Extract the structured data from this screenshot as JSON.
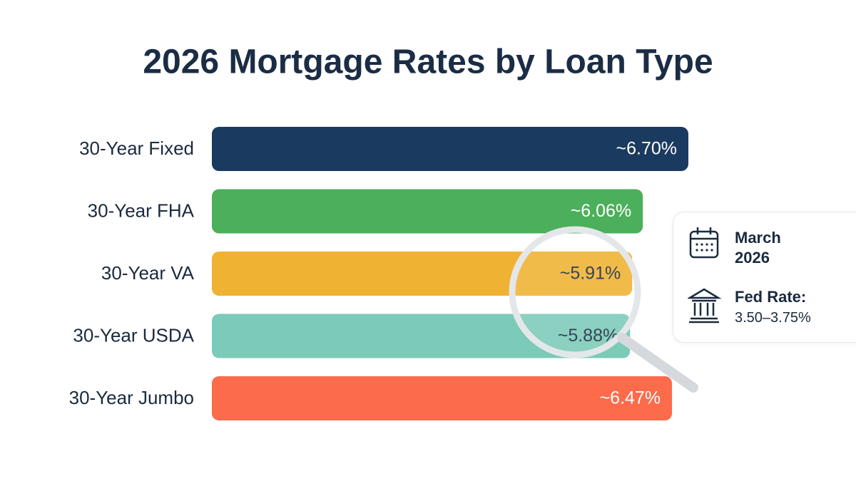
{
  "chart_data": {
    "type": "bar",
    "orientation": "horizontal",
    "title": "2026 Mortgage Rates by Loan Type",
    "categories": [
      "30-Year Fixed",
      "30-Year FHA",
      "30-Year VA",
      "30-Year USDA",
      "30-Year Jumbo"
    ],
    "values": [
      6.7,
      6.06,
      5.91,
      5.88,
      6.47
    ],
    "value_labels": [
      "~6.70%",
      "~6.06%",
      "~5.91%",
      "~5.88%",
      "~6.47%"
    ],
    "colors": [
      "#1b3a5f",
      "#4caf5b",
      "#f0b232",
      "#7ccab8",
      "#fc6b4a"
    ],
    "value_label_colors": [
      "#ffffff",
      "#ffffff",
      "#1b2a3d",
      "#1b2a3d",
      "#ffffff"
    ],
    "info": {
      "date": "March 2026",
      "rate_label": "Fed Rate:",
      "rate_value": "3.50–3.75%"
    }
  }
}
